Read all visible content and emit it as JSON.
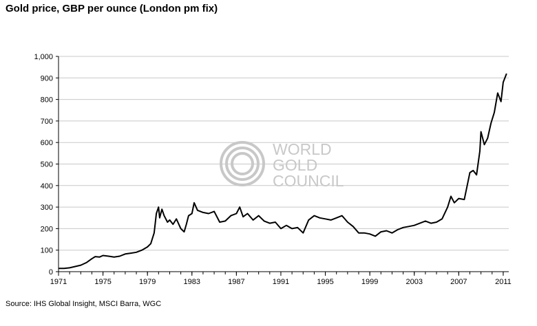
{
  "title": "Gold price, GBP per ounce (London pm fix)",
  "source": "Source: IHS Global Insight, MSCI Barra, WGC",
  "watermark": {
    "lines": [
      "WORLD",
      "GOLD",
      "COUNCIL"
    ],
    "color": "#c8c8c8"
  },
  "chart_data": {
    "type": "line",
    "title": "Gold price, GBP per ounce (London pm fix)",
    "xlabel": "",
    "ylabel": "",
    "xlim": [
      1971,
      2011.5
    ],
    "ylim": [
      0,
      1000
    ],
    "grid": true,
    "line_color": "#000000",
    "x_ticks": [
      "1971",
      "1975",
      "1979",
      "1983",
      "1987",
      "1991",
      "1995",
      "1999",
      "2003",
      "2007",
      "2011"
    ],
    "y_ticks": [
      "0",
      "100",
      "200",
      "300",
      "400",
      "500",
      "600",
      "700",
      "800",
      "900",
      "1,000"
    ],
    "series": [
      {
        "name": "",
        "x": [
          1971.0,
          1971.5,
          1972.0,
          1972.5,
          1973.0,
          1973.5,
          1974.0,
          1974.3,
          1974.7,
          1975.0,
          1975.5,
          1976.0,
          1976.5,
          1977.0,
          1977.5,
          1978.0,
          1978.5,
          1979.0,
          1979.3,
          1979.6,
          1979.8,
          1980.0,
          1980.1,
          1980.3,
          1980.5,
          1980.8,
          1981.0,
          1981.3,
          1981.6,
          1982.0,
          1982.3,
          1982.5,
          1982.7,
          1983.0,
          1983.2,
          1983.5,
          1984.0,
          1984.5,
          1985.0,
          1985.5,
          1986.0,
          1986.5,
          1987.0,
          1987.3,
          1987.6,
          1988.0,
          1988.5,
          1989.0,
          1989.5,
          1990.0,
          1990.5,
          1991.0,
          1991.5,
          1992.0,
          1992.5,
          1993.0,
          1993.5,
          1994.0,
          1994.5,
          1995.0,
          1995.5,
          1996.0,
          1996.5,
          1997.0,
          1997.5,
          1998.0,
          1998.5,
          1999.0,
          1999.5,
          2000.0,
          2000.5,
          2001.0,
          2001.5,
          2002.0,
          2002.5,
          2003.0,
          2003.5,
          2004.0,
          2004.5,
          2005.0,
          2005.5,
          2006.0,
          2006.3,
          2006.6,
          2007.0,
          2007.5,
          2008.0,
          2008.3,
          2008.6,
          2008.9,
          2009.0,
          2009.3,
          2009.6,
          2009.9,
          2010.2,
          2010.5,
          2010.8,
          2011.0,
          2011.3
        ],
        "values": [
          15,
          15,
          18,
          24,
          30,
          42,
          60,
          70,
          68,
          75,
          72,
          68,
          72,
          82,
          86,
          90,
          100,
          115,
          130,
          180,
          270,
          300,
          250,
          290,
          260,
          230,
          240,
          220,
          245,
          200,
          185,
          220,
          260,
          270,
          320,
          285,
          275,
          270,
          280,
          230,
          235,
          260,
          270,
          300,
          255,
          270,
          240,
          260,
          235,
          225,
          230,
          200,
          215,
          200,
          205,
          180,
          240,
          260,
          250,
          245,
          240,
          250,
          260,
          230,
          210,
          180,
          180,
          175,
          165,
          185,
          190,
          180,
          195,
          205,
          210,
          215,
          225,
          235,
          225,
          230,
          245,
          300,
          350,
          320,
          340,
          335,
          460,
          470,
          450,
          560,
          650,
          590,
          620,
          690,
          740,
          830,
          790,
          880,
          920
        ]
      }
    ]
  }
}
